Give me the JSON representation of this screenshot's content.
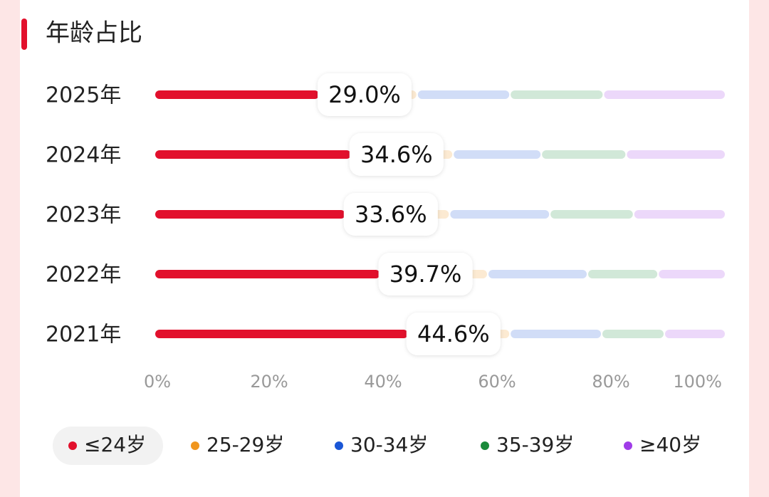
{
  "chart_data": {
    "type": "stacked-bar-horizontal",
    "title": "年龄占比",
    "categories": [
      "2025年",
      "2024年",
      "2023年",
      "2022年",
      "2021年"
    ],
    "series": [
      {
        "name": "≤24岁",
        "color": "#e2102c",
        "values": [
          29.0,
          34.6,
          33.6,
          39.7,
          44.6
        ],
        "value_labels": [
          "29.0%",
          "34.6%",
          "33.6%",
          "39.7%",
          "44.6%"
        ]
      },
      {
        "name": "25-29岁",
        "color": "#f0961e",
        "values": [
          17.1,
          17.8,
          18.2,
          18.8,
          17.8
        ]
      },
      {
        "name": "30-34岁",
        "color": "#1a56d6",
        "values": [
          16.3,
          15.5,
          17.6,
          17.5,
          16.1
        ]
      },
      {
        "name": "35-39岁",
        "color": "#1a8a3a",
        "values": [
          16.4,
          14.9,
          14.7,
          12.4,
          11.0
        ]
      },
      {
        "name": "≥40岁",
        "color": "#a03ce8",
        "values": [
          21.2,
          17.2,
          15.9,
          11.6,
          10.5
        ]
      }
    ],
    "xlim": [
      0,
      100
    ],
    "xticks": [
      {
        "value": 0,
        "label": "0%"
      },
      {
        "value": 20,
        "label": "20%"
      },
      {
        "value": 40,
        "label": "40%"
      },
      {
        "value": 60,
        "label": "60%"
      },
      {
        "value": 80,
        "label": "80%"
      },
      {
        "value": 100,
        "label": "100%"
      }
    ]
  }
}
